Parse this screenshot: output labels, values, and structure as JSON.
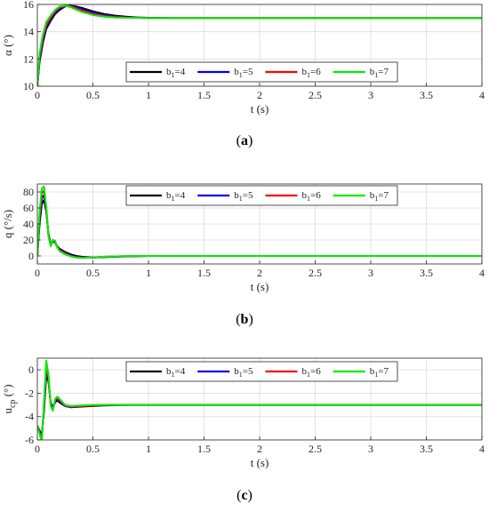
{
  "chart_data": [
    {
      "type": "line",
      "panel": "(a)",
      "caption_letter": "a",
      "xlabel": "t (s)",
      "ylabel": "α (°)",
      "ylabel_sub": "",
      "xlim": [
        0,
        4
      ],
      "ylim": [
        10,
        16
      ],
      "xticks": [
        0,
        0.5,
        1,
        1.5,
        2,
        2.5,
        3,
        3.5,
        4
      ],
      "xtick_labels": [
        "0",
        "0.5",
        "1",
        "1.5",
        "2",
        "2.5",
        "3",
        "3.5",
        "4"
      ],
      "yticks": [
        10,
        12,
        14,
        16
      ],
      "ytick_labels": [
        "10",
        "12",
        "14",
        "16"
      ],
      "grid": true,
      "legend_position": "lower-right",
      "series": [
        {
          "name": "b1=4",
          "color": "#000000",
          "x": [
            0,
            0.02,
            0.05,
            0.08,
            0.12,
            0.16,
            0.2,
            0.25,
            0.3,
            0.35,
            0.4,
            0.5,
            0.6,
            0.7,
            0.8,
            0.9,
            1.0,
            1.2,
            1.5,
            2,
            2.5,
            3,
            3.5,
            4
          ],
          "y": [
            10,
            11.8,
            13.2,
            14.2,
            14.8,
            15.3,
            15.6,
            15.85,
            15.9,
            15.85,
            15.75,
            15.5,
            15.3,
            15.18,
            15.1,
            15.05,
            15.02,
            15.0,
            15.0,
            15.0,
            15.0,
            15.0,
            15.0,
            15.0
          ]
        },
        {
          "name": "b1=5",
          "color": "#0000ee",
          "x": [
            0,
            0.02,
            0.05,
            0.08,
            0.12,
            0.16,
            0.2,
            0.25,
            0.3,
            0.35,
            0.4,
            0.5,
            0.6,
            0.7,
            0.8,
            0.9,
            1.0,
            1.2,
            1.5,
            2,
            2.5,
            3,
            3.5,
            4
          ],
          "y": [
            10,
            12.0,
            13.4,
            14.35,
            14.95,
            15.4,
            15.7,
            15.88,
            15.88,
            15.8,
            15.65,
            15.4,
            15.22,
            15.12,
            15.06,
            15.03,
            15.01,
            15.0,
            15.0,
            15.0,
            15.0,
            15.0,
            15.0,
            15.0
          ]
        },
        {
          "name": "b1=6",
          "color": "#ff0000",
          "x": [
            0,
            0.02,
            0.05,
            0.08,
            0.12,
            0.16,
            0.2,
            0.25,
            0.3,
            0.35,
            0.4,
            0.5,
            0.6,
            0.7,
            0.8,
            0.9,
            1.0,
            1.2,
            1.5,
            2,
            2.5,
            3,
            3.5,
            4
          ],
          "y": [
            10,
            12.2,
            13.6,
            14.5,
            15.05,
            15.5,
            15.78,
            15.9,
            15.85,
            15.72,
            15.56,
            15.3,
            15.15,
            15.08,
            15.04,
            15.02,
            15.0,
            15.0,
            15.0,
            15.0,
            15.0,
            15.0,
            15.0,
            15.0
          ]
        },
        {
          "name": "b1=7",
          "color": "#00ee00",
          "x": [
            0,
            0.02,
            0.05,
            0.08,
            0.12,
            0.16,
            0.2,
            0.25,
            0.3,
            0.35,
            0.4,
            0.5,
            0.6,
            0.7,
            0.8,
            0.9,
            1.0,
            1.2,
            1.5,
            2,
            2.5,
            3,
            3.5,
            4
          ],
          "y": [
            10,
            12.4,
            13.8,
            14.7,
            15.2,
            15.6,
            15.85,
            15.9,
            15.8,
            15.62,
            15.45,
            15.22,
            15.1,
            15.04,
            15.02,
            15.01,
            15.0,
            15.0,
            15.0,
            15.0,
            15.0,
            15.0,
            15.0,
            15.0
          ]
        }
      ]
    },
    {
      "type": "line",
      "panel": "(b)",
      "caption_letter": "b",
      "xlabel": "t (s)",
      "ylabel": "q (°/s)",
      "ylabel_sub": "",
      "xlim": [
        0,
        4
      ],
      "ylim": [
        -10,
        90
      ],
      "xticks": [
        0,
        0.5,
        1,
        1.5,
        2,
        2.5,
        3,
        3.5,
        4
      ],
      "xtick_labels": [
        "0",
        "0.5",
        "1",
        "1.5",
        "2",
        "2.5",
        "3",
        "3.5",
        "4"
      ],
      "yticks": [
        0,
        20,
        40,
        60,
        80
      ],
      "ytick_labels": [
        "0",
        "20",
        "40",
        "60",
        "80"
      ],
      "grid": true,
      "legend_position": "top-right",
      "series": [
        {
          "name": "b1=4",
          "color": "#000000",
          "x": [
            0,
            0.02,
            0.04,
            0.06,
            0.08,
            0.1,
            0.12,
            0.14,
            0.16,
            0.18,
            0.2,
            0.25,
            0.3,
            0.35,
            0.4,
            0.5,
            0.6,
            0.8,
            1.0,
            1.5,
            2,
            2.5,
            3,
            3.5,
            4
          ],
          "y": [
            0,
            40,
            65,
            70,
            55,
            28,
            15,
            18,
            17,
            12,
            9,
            5,
            2,
            0,
            -1,
            -2,
            -1.5,
            -0.5,
            0,
            0,
            0,
            0,
            0,
            0,
            0
          ]
        },
        {
          "name": "b1=5",
          "color": "#0000ee",
          "x": [
            0,
            0.02,
            0.04,
            0.06,
            0.08,
            0.1,
            0.12,
            0.14,
            0.16,
            0.18,
            0.2,
            0.25,
            0.3,
            0.35,
            0.4,
            0.5,
            0.6,
            0.8,
            1.0,
            1.5,
            2,
            2.5,
            3,
            3.5,
            4
          ],
          "y": [
            0,
            45,
            72,
            76,
            58,
            27,
            14,
            18,
            17,
            11,
            8,
            4,
            1,
            -1,
            -1.5,
            -2,
            -1.2,
            -0.4,
            0,
            0,
            0,
            0,
            0,
            0,
            0
          ]
        },
        {
          "name": "b1=6",
          "color": "#ff0000",
          "x": [
            0,
            0.02,
            0.04,
            0.06,
            0.08,
            0.1,
            0.12,
            0.14,
            0.16,
            0.18,
            0.2,
            0.25,
            0.3,
            0.35,
            0.4,
            0.5,
            0.6,
            0.8,
            1.0,
            1.5,
            2,
            2.5,
            3,
            3.5,
            4
          ],
          "y": [
            0,
            50,
            78,
            82,
            60,
            26,
            13,
            19,
            18,
            11,
            7,
            3,
            0,
            -1.5,
            -2,
            -2,
            -1,
            -0.3,
            0,
            0,
            0,
            0,
            0,
            0,
            0
          ]
        },
        {
          "name": "b1=7",
          "color": "#00ee00",
          "x": [
            0,
            0.02,
            0.04,
            0.06,
            0.08,
            0.1,
            0.12,
            0.14,
            0.16,
            0.18,
            0.2,
            0.25,
            0.3,
            0.35,
            0.4,
            0.5,
            0.6,
            0.8,
            1.0,
            1.5,
            2,
            2.5,
            3,
            3.5,
            4
          ],
          "y": [
            0,
            55,
            84,
            87,
            62,
            25,
            12,
            20,
            19,
            11,
            6,
            2,
            -0.5,
            -2,
            -2.5,
            -2,
            -1,
            -0.2,
            0,
            0,
            0,
            0,
            0,
            0,
            0
          ]
        }
      ]
    },
    {
      "type": "line",
      "panel": "(c)",
      "caption_letter": "c",
      "xlabel": "t (s)",
      "ylabel": "u",
      "ylabel_sub": "cp",
      "ylabel_suffix": " (°)",
      "xlim": [
        0,
        4
      ],
      "ylim": [
        -6,
        1
      ],
      "xticks": [
        0,
        0.5,
        1,
        1.5,
        2,
        2.5,
        3,
        3.5,
        4
      ],
      "xtick_labels": [
        "0",
        "0.5",
        "1",
        "1.5",
        "2",
        "2.5",
        "3",
        "3.5",
        "4"
      ],
      "yticks": [
        -6,
        -4,
        -2,
        0
      ],
      "ytick_labels": [
        "-6",
        "-4",
        "-2",
        "0"
      ],
      "grid": true,
      "legend_position": "top-right",
      "series": [
        {
          "name": "b1=4",
          "color": "#000000",
          "x": [
            0,
            0.02,
            0.04,
            0.06,
            0.08,
            0.1,
            0.12,
            0.14,
            0.16,
            0.18,
            0.2,
            0.25,
            0.3,
            0.4,
            0.5,
            0.6,
            0.8,
            1.0,
            1.5,
            2,
            2.5,
            3,
            3.5,
            4
          ],
          "y": [
            -4.8,
            -5.2,
            -5.6,
            -3.5,
            -0.5,
            -1.0,
            -2.8,
            -3.2,
            -2.8,
            -2.6,
            -2.8,
            -3.1,
            -3.2,
            -3.15,
            -3.1,
            -3.05,
            -3.0,
            -3.0,
            -3.0,
            -3.0,
            -3.0,
            -3.0,
            -3.0,
            -3.0
          ]
        },
        {
          "name": "b1=5",
          "color": "#0000ee",
          "x": [
            0,
            0.02,
            0.04,
            0.06,
            0.08,
            0.1,
            0.12,
            0.14,
            0.16,
            0.18,
            0.2,
            0.25,
            0.3,
            0.4,
            0.5,
            0.6,
            0.8,
            1.0,
            1.5,
            2,
            2.5,
            3,
            3.5,
            4
          ],
          "y": [
            -4.8,
            -5.3,
            -5.8,
            -3.2,
            -0.1,
            -0.8,
            -2.9,
            -3.3,
            -2.7,
            -2.5,
            -2.7,
            -3.1,
            -3.2,
            -3.1,
            -3.05,
            -3.0,
            -3.0,
            -3.0,
            -3.0,
            -3.0,
            -3.0,
            -3.0,
            -3.0,
            -3.0
          ]
        },
        {
          "name": "b1=6",
          "color": "#ff0000",
          "x": [
            0,
            0.02,
            0.04,
            0.06,
            0.08,
            0.1,
            0.12,
            0.14,
            0.16,
            0.18,
            0.2,
            0.25,
            0.3,
            0.4,
            0.5,
            0.6,
            0.8,
            1.0,
            1.5,
            2,
            2.5,
            3,
            3.5,
            4
          ],
          "y": [
            -4.8,
            -5.4,
            -6.0,
            -3.0,
            0.3,
            -0.6,
            -3.0,
            -3.4,
            -2.6,
            -2.4,
            -2.6,
            -3.05,
            -3.15,
            -3.1,
            -3.05,
            -3.0,
            -3.0,
            -3.0,
            -3.0,
            -3.0,
            -3.0,
            -3.0,
            -3.0,
            -3.0
          ]
        },
        {
          "name": "b1=7",
          "color": "#00ee00",
          "x": [
            0,
            0.02,
            0.04,
            0.06,
            0.08,
            0.1,
            0.12,
            0.14,
            0.16,
            0.18,
            0.2,
            0.25,
            0.3,
            0.4,
            0.5,
            0.6,
            0.8,
            1.0,
            1.5,
            2,
            2.5,
            3,
            3.5,
            4
          ],
          "y": [
            -4.8,
            -5.5,
            -6.2,
            -2.8,
            0.8,
            -0.4,
            -3.1,
            -3.5,
            -2.5,
            -2.3,
            -2.5,
            -3.0,
            -3.1,
            -3.05,
            -3.0,
            -3.0,
            -3.0,
            -3.0,
            -3.0,
            -3.0,
            -3.0,
            -3.0,
            -3.0,
            -3.0
          ]
        }
      ]
    }
  ]
}
